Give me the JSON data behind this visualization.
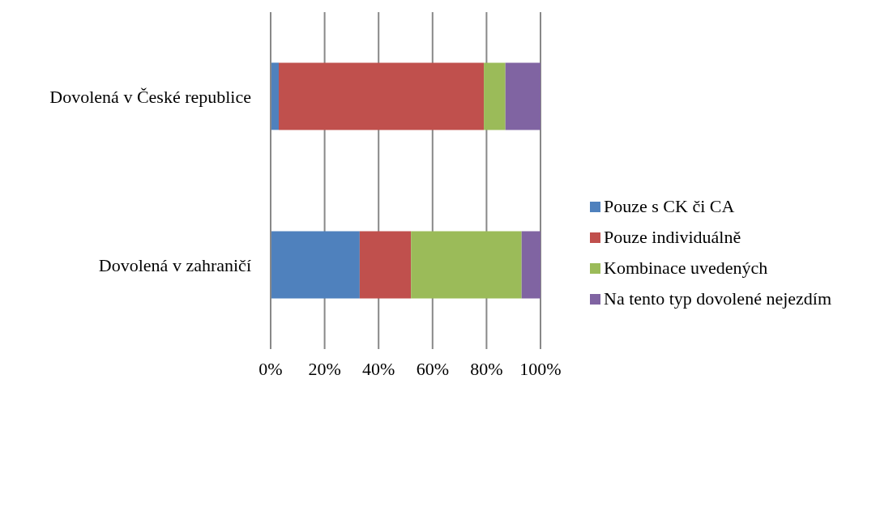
{
  "chart_data": {
    "type": "bar",
    "orientation": "horizontal",
    "stacked": true,
    "categories": [
      "Dovolená v České republice",
      "Dovolená v zahraničí"
    ],
    "series": [
      {
        "name": "Pouze s CK či CA",
        "color": "#4f81bd",
        "values": [
          3,
          33
        ]
      },
      {
        "name": "Pouze individuálně",
        "color": "#c0504d",
        "values": [
          76,
          19
        ]
      },
      {
        "name": "Kombinace uvedených",
        "color": "#9bbb59",
        "values": [
          8,
          41
        ]
      },
      {
        "name": "Na tento typ dovolené nejezdím",
        "color": "#8064a2",
        "values": [
          13,
          7
        ]
      }
    ],
    "xlim": [
      0,
      100
    ],
    "xticks": [
      {
        "value": 0,
        "label": "0%"
      },
      {
        "value": 20,
        "label": "20%"
      },
      {
        "value": 40,
        "label": "40%"
      },
      {
        "value": 60,
        "label": "60%"
      },
      {
        "value": 80,
        "label": "80%"
      },
      {
        "value": 100,
        "label": "100%"
      }
    ],
    "grid": "x",
    "legend": "right"
  }
}
